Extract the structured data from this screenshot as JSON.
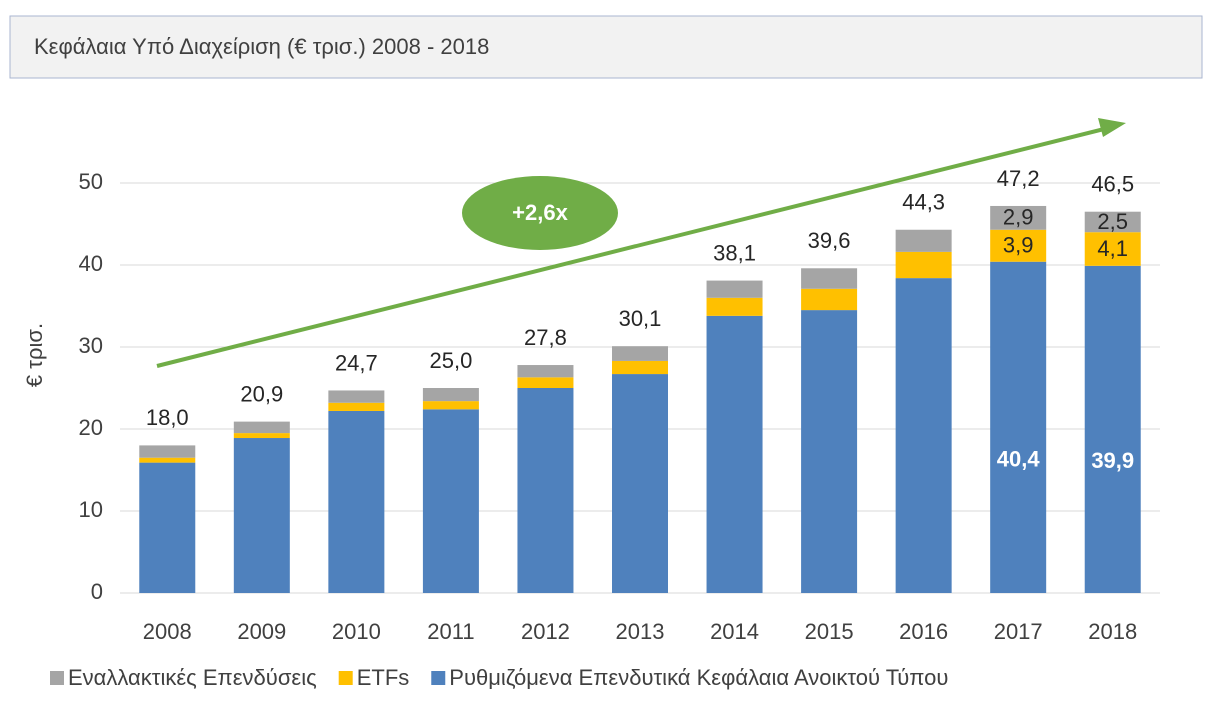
{
  "chart_data": {
    "type": "stacked_bar",
    "title": "Κεφάλαια Υπό Διαχείριση (€ τρισ.) 2008 - 2018",
    "y_label": "€ τρισ.",
    "annotation": "+2,6x",
    "categories": [
      "2008",
      "2009",
      "2010",
      "2011",
      "2012",
      "2013",
      "2014",
      "2015",
      "2016",
      "2017",
      "2018"
    ],
    "series": [
      {
        "name": "Ρυθμιζόμενα Επενδυτικά Κεφάλαια Ανοικτού Τύπου",
        "color": "#4f81bd",
        "values": [
          15.9,
          18.9,
          22.2,
          22.4,
          25.0,
          26.7,
          33.8,
          34.5,
          38.4,
          40.4,
          39.9
        ],
        "value_labels": [
          null,
          null,
          null,
          null,
          null,
          null,
          null,
          null,
          null,
          "40,4",
          "39,9"
        ]
      },
      {
        "name": "ETFs",
        "color": "#ffc000",
        "values": [
          0.6,
          0.6,
          1.0,
          1.0,
          1.3,
          1.6,
          2.2,
          2.6,
          3.2,
          3.9,
          4.1
        ],
        "value_labels": [
          null,
          null,
          null,
          null,
          null,
          null,
          null,
          null,
          null,
          "3,9",
          "4,1"
        ]
      },
      {
        "name": "Εναλλακτικές Επενδύσεις",
        "color": "#a5a5a5",
        "values": [
          1.5,
          1.4,
          1.5,
          1.6,
          1.5,
          1.8,
          2.1,
          2.5,
          2.7,
          2.9,
          2.5
        ],
        "value_labels": [
          null,
          null,
          null,
          null,
          null,
          null,
          null,
          null,
          null,
          "2,9",
          "2,5"
        ]
      }
    ],
    "totals": {
      "values": [
        18.0,
        20.9,
        24.7,
        25.0,
        27.8,
        30.1,
        38.1,
        39.6,
        44.3,
        47.2,
        46.5
      ],
      "value_labels": [
        "18,0",
        "20,9",
        "24,7",
        "25,0",
        "27,8",
        "30,1",
        "38,1",
        "39,6",
        "44,3",
        "47,2",
        "46,5"
      ]
    },
    "ylim": [
      0,
      60
    ],
    "yticks": [
      0,
      10,
      20,
      30,
      40,
      50
    ],
    "grid": true,
    "legend": "bottom"
  }
}
